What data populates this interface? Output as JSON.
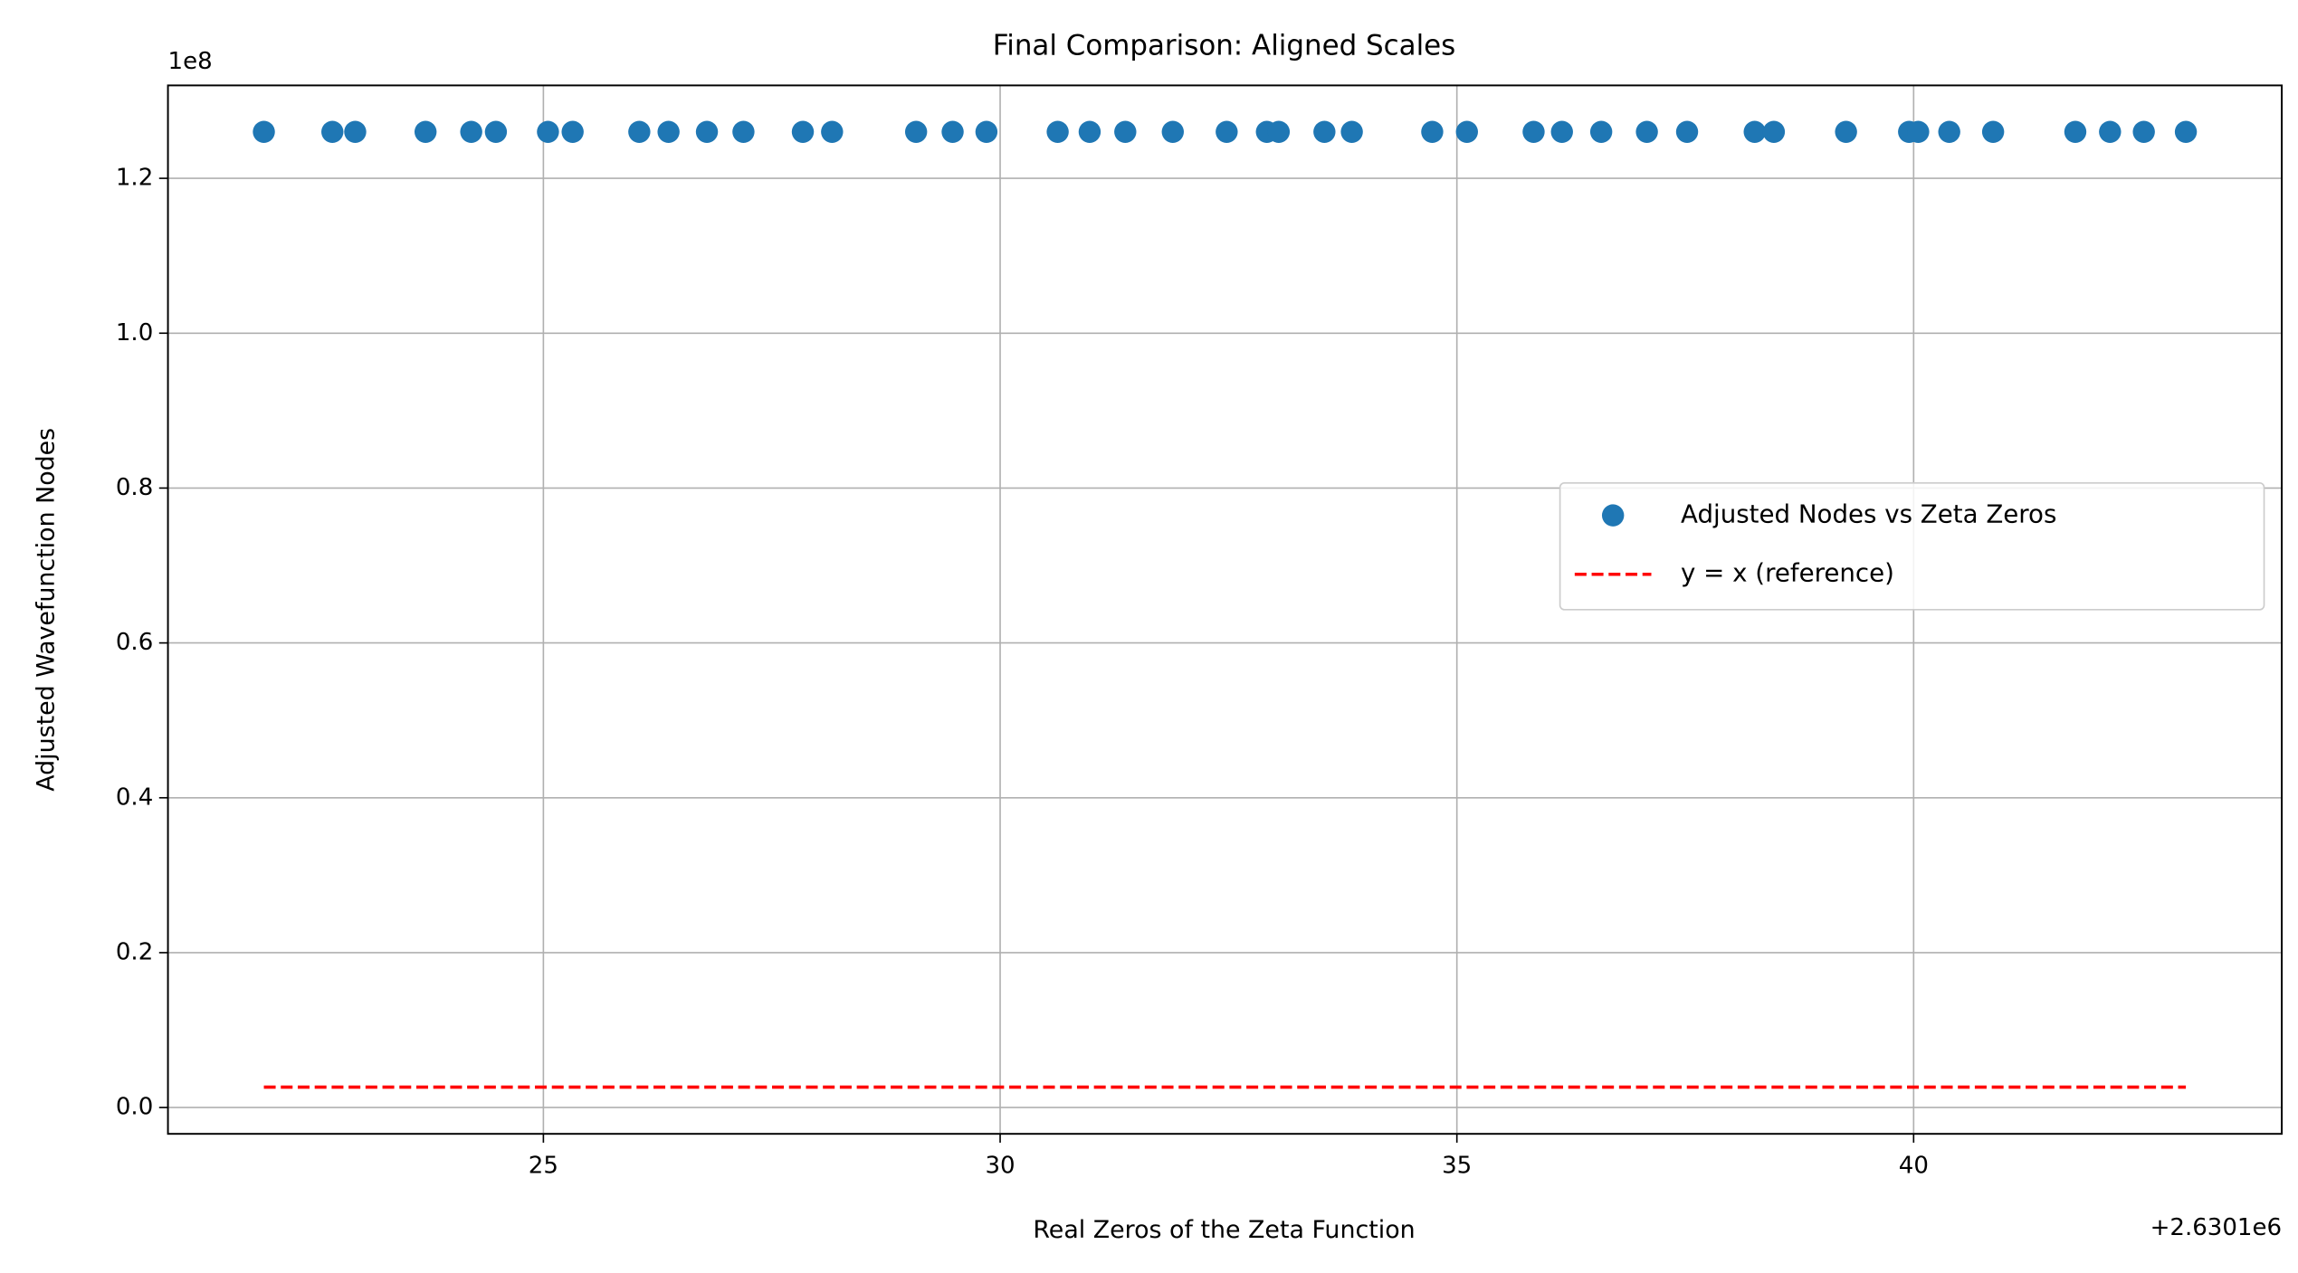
{
  "chart_data": {
    "type": "scatter",
    "title": "Final Comparison: Aligned Scales",
    "xlabel": "Real Zeros of the Zeta Function",
    "ylabel": "Adjusted Wavefunction Nodes",
    "x_offset_text": "+2.6301e6",
    "y_offset_text": "1e8",
    "xlim": [
      20.89,
      44.03
    ],
    "ylim": [
      -0.034,
      1.32
    ],
    "xticks": [
      25,
      30,
      35,
      40
    ],
    "yticks": [
      {
        "value": 0,
        "label": "0.0"
      },
      {
        "value": 0.2,
        "label": "0.2"
      },
      {
        "value": 0.4,
        "label": "0.4"
      },
      {
        "value": 0.6,
        "label": "0.6"
      },
      {
        "value": 0.8,
        "label": "0.8"
      },
      {
        "value": 1.0,
        "label": "1.0"
      },
      {
        "value": 1.2,
        "label": "1.2"
      }
    ],
    "grid": true,
    "legend": "center right",
    "series": [
      {
        "name": "Adjusted Nodes vs Zeta Zeros",
        "color": "#1f77b4",
        "mark": "marker",
        "x": [
          21.94,
          22.69,
          22.94,
          23.71,
          24.21,
          24.48,
          25.05,
          25.32,
          26.05,
          26.37,
          26.79,
          27.19,
          27.84,
          28.16,
          29.08,
          29.48,
          29.85,
          30.63,
          30.98,
          31.37,
          31.89,
          32.48,
          32.92,
          33.05,
          33.55,
          33.85,
          34.73,
          35.11,
          35.84,
          36.15,
          36.58,
          37.08,
          37.52,
          38.26,
          38.47,
          39.26,
          39.95,
          40.05,
          40.39,
          40.87,
          41.77,
          42.15,
          42.52,
          42.98
        ],
        "values": [
          1.26,
          1.26,
          1.26,
          1.26,
          1.26,
          1.26,
          1.26,
          1.26,
          1.26,
          1.26,
          1.26,
          1.26,
          1.26,
          1.26,
          1.26,
          1.26,
          1.26,
          1.26,
          1.26,
          1.26,
          1.26,
          1.26,
          1.26,
          1.26,
          1.26,
          1.26,
          1.26,
          1.26,
          1.26,
          1.26,
          1.26,
          1.26,
          1.26,
          1.26,
          1.26,
          1.26,
          1.26,
          1.26,
          1.26,
          1.26,
          1.26,
          1.26,
          1.26,
          1.26
        ]
      },
      {
        "name": "y = x (reference)",
        "color": "#ff0000",
        "mark": "dashed-line",
        "x": [
          21.94,
          42.98
        ],
        "values": [
          0.0263,
          0.0263
        ]
      }
    ]
  }
}
